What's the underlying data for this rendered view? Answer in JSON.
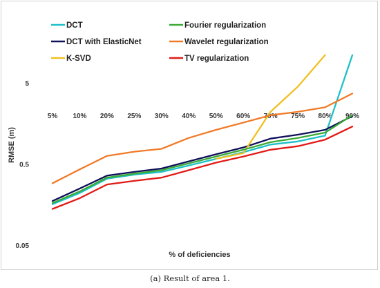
{
  "caption": "(a) Result of area 1.",
  "chart_data": {
    "type": "line",
    "title": "",
    "xlabel": "% of deficiencies",
    "ylabel": "RMSE (m)",
    "yscale": "log",
    "ylim": [
      0.05,
      15
    ],
    "yticks": [
      "0.05",
      "0.5",
      "5"
    ],
    "grid": false,
    "legend_position": "top",
    "categories": [
      "5%",
      "10%",
      "20%",
      "25%",
      "30%",
      "40%",
      "50%",
      "60%",
      "70%",
      "75%",
      "80%",
      "90%"
    ],
    "series": [
      {
        "name": "DCT",
        "color": "#1ec0c8",
        "values": [
          0.16,
          0.22,
          0.33,
          0.37,
          0.4,
          0.48,
          0.58,
          0.7,
          0.87,
          0.95,
          1.12,
          11.0
        ]
      },
      {
        "name": "DCT with ElasticNet",
        "color": "#0f0f5a",
        "values": [
          0.175,
          0.25,
          0.36,
          0.4,
          0.44,
          0.54,
          0.66,
          0.8,
          1.03,
          1.15,
          1.32,
          1.95
        ]
      },
      {
        "name": "K-SVD",
        "color": "#f0c020",
        "values": [
          null,
          null,
          null,
          null,
          null,
          null,
          0.58,
          0.68,
          2.2,
          4.5,
          11.0,
          null
        ]
      },
      {
        "name": "Fourier regularization",
        "color": "#3aaa35",
        "values": [
          0.165,
          0.23,
          0.34,
          0.38,
          0.42,
          0.51,
          0.62,
          0.75,
          0.93,
          1.05,
          1.22,
          2.0
        ]
      },
      {
        "name": "Wavelet regularization",
        "color": "#f07a28",
        "values": [
          0.29,
          0.43,
          0.63,
          0.71,
          0.77,
          1.05,
          1.32,
          1.62,
          2.0,
          2.2,
          2.5,
          3.7
        ]
      },
      {
        "name": "TV regularization",
        "color": "#e01a16",
        "values": [
          0.14,
          0.19,
          0.28,
          0.31,
          0.34,
          0.42,
          0.52,
          0.62,
          0.75,
          0.83,
          1.0,
          1.45
        ]
      }
    ]
  }
}
